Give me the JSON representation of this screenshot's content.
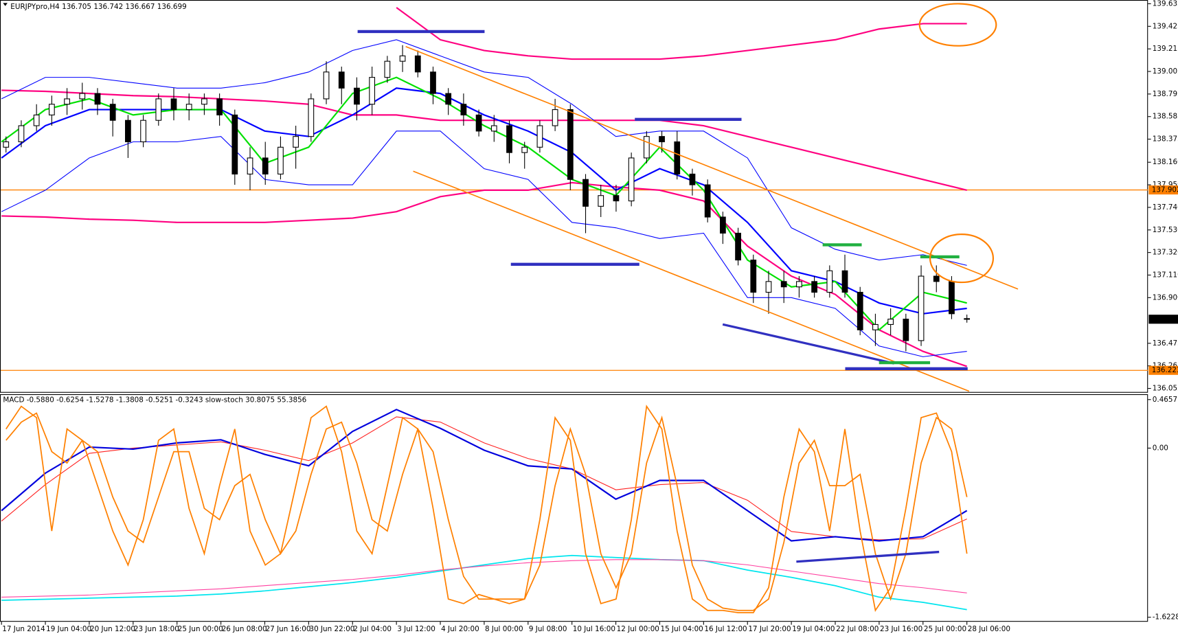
{
  "chart_data": [
    {
      "type": "candlestick",
      "title": "EURJPYpro,H4",
      "categories": [
        "17 Jun 2014",
        "19 Jun 04:00",
        "20 Jun 12:00",
        "23 Jun 18:00",
        "25 Jun 00:00",
        "26 Jun 08:00",
        "27 Jun 16:00",
        "30 Jun 22:00",
        "2 Jul 04:00",
        "3 Jul 12:00",
        "4 Jul 20:00",
        "8 Jul 00:00",
        "9 Jul 08:00",
        "10 Jul 16:00",
        "12 Jul 00:00",
        "15 Jul 04:00",
        "16 Jul 12:00",
        "17 Jul 20:00",
        "19 Jul 04:00",
        "22 Jul 08:00",
        "23 Jul 16:00",
        "25 Jul 00:00",
        "28 Jul 06:00"
      ],
      "ylim": [
        136.022,
        139.67
      ],
      "yticks": [
        139.635,
        139.425,
        139.215,
        139.005,
        138.795,
        138.585,
        138.375,
        {
          "value": 138.16,
          "label": "138.160"
        },
        {
          "value": 137.95,
          "label": "137.950"
        },
        {
          "value": 137.74,
          "label": "137.740"
        },
        {
          "value": 137.53,
          "label": "137.530"
        },
        {
          "value": 137.32,
          "label": "137.320"
        },
        {
          "value": 137.11,
          "label": "137.110"
        },
        {
          "value": 136.9,
          "label": "136.900"
        },
        136.475,
        136.265,
        136.055
      ],
      "price_lines": [
        {
          "value": 137.902,
          "color": "#ff8000"
        },
        {
          "value": 136.223,
          "color": "#ff8000"
        }
      ],
      "bid": 136.699,
      "ohlc": [
        [
          138.3,
          138.4,
          138.25,
          138.35
        ],
        [
          138.35,
          138.55,
          138.3,
          138.5
        ],
        [
          138.5,
          138.7,
          138.45,
          138.6
        ],
        [
          138.6,
          138.78,
          138.5,
          138.7
        ],
        [
          138.7,
          138.85,
          138.6,
          138.75
        ],
        [
          138.75,
          138.9,
          138.65,
          138.8
        ],
        [
          138.8,
          138.85,
          138.6,
          138.7
        ],
        [
          138.7,
          138.75,
          138.4,
          138.55
        ],
        [
          138.55,
          138.6,
          138.2,
          138.35
        ],
        [
          138.35,
          138.6,
          138.3,
          138.55
        ],
        [
          138.55,
          138.8,
          138.5,
          138.75
        ],
        [
          138.75,
          138.85,
          138.55,
          138.65
        ],
        [
          138.65,
          138.8,
          138.55,
          138.7
        ],
        [
          138.7,
          138.8,
          138.6,
          138.75
        ],
        [
          138.75,
          138.8,
          138.5,
          138.6
        ],
        [
          138.6,
          138.65,
          137.95,
          138.05
        ],
        [
          138.05,
          138.3,
          137.9,
          138.2
        ],
        [
          138.2,
          138.35,
          137.95,
          138.05
        ],
        [
          138.05,
          138.4,
          138.0,
          138.3
        ],
        [
          138.3,
          138.5,
          138.1,
          138.4
        ],
        [
          138.4,
          138.8,
          138.35,
          138.75
        ],
        [
          138.75,
          139.1,
          138.7,
          139.0
        ],
        [
          139.0,
          139.05,
          138.7,
          138.85
        ],
        [
          138.85,
          138.95,
          138.55,
          138.7
        ],
        [
          138.7,
          139.05,
          138.6,
          138.95
        ],
        [
          138.95,
          139.15,
          138.9,
          139.1
        ],
        [
          139.1,
          139.25,
          139.0,
          139.15
        ],
        [
          139.15,
          139.2,
          138.95,
          139.0
        ],
        [
          139.0,
          139.05,
          138.7,
          138.8
        ],
        [
          138.8,
          138.85,
          138.6,
          138.7
        ],
        [
          138.7,
          138.8,
          138.5,
          138.6
        ],
        [
          138.6,
          138.65,
          138.4,
          138.45
        ],
        [
          138.45,
          138.6,
          138.35,
          138.5
        ],
        [
          138.5,
          138.55,
          138.15,
          138.25
        ],
        [
          138.25,
          138.35,
          138.1,
          138.3
        ],
        [
          138.3,
          138.55,
          138.25,
          138.5
        ],
        [
          138.5,
          138.75,
          138.45,
          138.65
        ],
        [
          138.65,
          138.7,
          137.9,
          138.0
        ],
        [
          138.0,
          138.05,
          137.5,
          137.75
        ],
        [
          137.75,
          137.95,
          137.65,
          137.85
        ],
        [
          137.85,
          137.95,
          137.7,
          137.8
        ],
        [
          137.8,
          138.25,
          137.75,
          138.2
        ],
        [
          138.2,
          138.45,
          138.15,
          138.4
        ],
        [
          138.4,
          138.45,
          138.25,
          138.35
        ],
        [
          138.35,
          138.45,
          138.0,
          138.05
        ],
        [
          138.05,
          138.1,
          137.85,
          137.95
        ],
        [
          137.95,
          138.0,
          137.6,
          137.65
        ],
        [
          137.65,
          137.7,
          137.4,
          137.5
        ],
        [
          137.5,
          137.55,
          137.2,
          137.25
        ],
        [
          137.25,
          137.3,
          136.85,
          136.95
        ],
        [
          136.95,
          137.15,
          136.75,
          137.05
        ],
        [
          137.05,
          137.15,
          136.85,
          137.0
        ],
        [
          137.0,
          137.1,
          136.9,
          137.05
        ],
        [
          137.05,
          137.1,
          136.9,
          136.95
        ],
        [
          136.95,
          137.2,
          136.9,
          137.15
        ],
        [
          137.15,
          137.3,
          136.9,
          136.95
        ],
        [
          136.95,
          137.0,
          136.55,
          136.6
        ],
        [
          136.6,
          136.75,
          136.45,
          136.65
        ],
        [
          136.65,
          136.8,
          136.55,
          136.7
        ],
        [
          136.7,
          136.75,
          136.4,
          136.5
        ],
        [
          136.5,
          137.2,
          136.45,
          137.1
        ],
        [
          137.1,
          137.2,
          136.95,
          137.05
        ],
        [
          137.05,
          137.1,
          136.7,
          136.75
        ],
        [
          136.705,
          136.742,
          136.667,
          136.699
        ]
      ],
      "overlays": [
        {
          "color": "#ff0080",
          "width": 2,
          "values": [
            null,
            null,
            null,
            null,
            null,
            null,
            null,
            null,
            null,
            139.6,
            139.3,
            139.2,
            139.15,
            139.12,
            139.12,
            139.12,
            139.15,
            139.2,
            139.25,
            139.3,
            139.4,
            139.45,
            139.45
          ]
        },
        {
          "color": "#ff0080",
          "width": 2,
          "values": [
            138.83,
            138.82,
            138.8,
            138.78,
            138.77,
            138.75,
            138.73,
            138.7,
            138.6,
            138.6,
            138.55,
            138.55,
            138.55,
            138.55,
            138.55,
            138.55,
            138.5,
            138.4,
            138.3,
            138.2,
            138.1,
            138.0,
            137.9
          ]
        },
        {
          "color": "#ff0080",
          "width": 2,
          "values": [
            137.66,
            137.65,
            137.63,
            137.62,
            137.6,
            137.6,
            137.6,
            137.62,
            137.64,
            137.7,
            137.84,
            137.9,
            137.9,
            137.97,
            137.93,
            137.9,
            137.8,
            137.38,
            137.1,
            136.93,
            136.6,
            136.4,
            136.26
          ]
        },
        {
          "color": "#0000ff",
          "width": 1,
          "values": [
            138.75,
            138.95,
            138.95,
            138.9,
            138.85,
            138.85,
            138.9,
            139.0,
            139.2,
            139.3,
            139.15,
            139.0,
            138.95,
            138.7,
            138.4,
            138.45,
            138.45,
            138.2,
            137.55,
            137.35,
            137.25,
            137.3,
            137.2
          ]
        },
        {
          "color": "#0000ff",
          "width": 1,
          "values": [
            137.7,
            137.9,
            138.2,
            138.35,
            138.35,
            138.4,
            138.0,
            137.95,
            137.95,
            138.45,
            138.45,
            138.1,
            138.0,
            137.6,
            137.55,
            137.45,
            137.5,
            136.9,
            136.9,
            136.8,
            136.45,
            136.35,
            136.4
          ]
        },
        {
          "color": "#0000ff",
          "width": 2,
          "values": [
            138.2,
            138.5,
            138.65,
            138.65,
            138.65,
            138.65,
            138.45,
            138.4,
            138.6,
            138.85,
            138.8,
            138.6,
            138.45,
            138.25,
            137.9,
            138.1,
            137.95,
            137.6,
            137.15,
            137.05,
            136.85,
            136.75,
            136.8
          ]
        },
        {
          "color": "#00e000",
          "width": 2,
          "values": [
            138.35,
            138.65,
            138.75,
            138.6,
            138.65,
            138.65,
            138.15,
            138.3,
            138.8,
            138.95,
            138.75,
            138.5,
            138.3,
            138.0,
            137.85,
            138.3,
            137.9,
            137.25,
            137.0,
            137.05,
            136.6,
            136.95,
            136.85
          ]
        }
      ]
    },
    {
      "type": "line",
      "title": "MACD -0.5880 -0.6254 -1.5278 -1.3808 -0.5251 -0.3243 slow-stoch 30.8075 55.3856",
      "ylim": [
        -1.666,
        0.51
      ],
      "yticks": [
        0.4657,
        {
          "value": 0,
          "label": "0.00"
        },
        -1.6228
      ],
      "y2lim": [
        0,
        100
      ],
      "series": [
        {
          "color": "#00e5ee",
          "width": 1.6,
          "values": [
            -1.46,
            -1.45,
            -1.44,
            -1.43,
            -1.42,
            -1.4,
            -1.37,
            -1.33,
            -1.29,
            -1.24,
            -1.18,
            -1.12,
            -1.06,
            -1.03,
            -1.05,
            -1.07,
            -1.08,
            -1.17,
            -1.24,
            -1.32,
            -1.43,
            -1.48,
            -1.55
          ]
        },
        {
          "color": "#ff3fa0",
          "width": 1,
          "values": [
            -1.43,
            -1.42,
            -1.41,
            -1.39,
            -1.37,
            -1.35,
            -1.32,
            -1.29,
            -1.26,
            -1.22,
            -1.17,
            -1.13,
            -1.1,
            -1.08,
            -1.07,
            -1.07,
            -1.08,
            -1.12,
            -1.18,
            -1.24,
            -1.3,
            -1.34,
            -1.39
          ]
        },
        {
          "color": "#ff2020",
          "width": 1,
          "values": [
            -0.7,
            -0.35,
            -0.05,
            0.0,
            0.03,
            0.06,
            -0.02,
            -0.12,
            0.05,
            0.3,
            0.25,
            0.05,
            -0.1,
            -0.2,
            -0.4,
            -0.35,
            -0.33,
            -0.5,
            -0.8,
            -0.85,
            -0.88,
            -0.87,
            -0.68
          ]
        },
        {
          "color": "#0000dd",
          "width": 2,
          "values": [
            -0.6,
            -0.24,
            0.01,
            -0.01,
            0.05,
            0.08,
            -0.06,
            -0.17,
            0.16,
            0.37,
            0.19,
            -0.02,
            -0.17,
            -0.2,
            -0.49,
            -0.31,
            -0.31,
            -0.6,
            -0.89,
            -0.85,
            -0.89,
            -0.85,
            -0.6
          ]
        },
        {
          "color": "#ff8000",
          "width": 1.6,
          "axis": "y2",
          "values": [
            80,
            88,
            92,
            75,
            70,
            80,
            75,
            55,
            40,
            35,
            55,
            75,
            75,
            50,
            45,
            60,
            65,
            45,
            30,
            40,
            65,
            85,
            88,
            70,
            45,
            40,
            65,
            85,
            75,
            45,
            20,
            10,
            10,
            10,
            10,
            25,
            60,
            85,
            65,
            30,
            15,
            30,
            70,
            90,
            60,
            25,
            10,
            6,
            5,
            5,
            10,
            35,
            70,
            80,
            60,
            60,
            65,
            30,
            10,
            30,
            70,
            90,
            85,
            55
          ]
        },
        {
          "color": "#ff8000",
          "width": 1.6,
          "axis": "y2",
          "values": [
            85,
            95,
            90,
            40,
            85,
            80,
            60,
            40,
            25,
            45,
            80,
            85,
            50,
            30,
            60,
            85,
            40,
            25,
            30,
            60,
            90,
            95,
            75,
            40,
            30,
            60,
            90,
            85,
            50,
            10,
            8,
            12,
            10,
            8,
            10,
            45,
            90,
            80,
            30,
            8,
            10,
            45,
            95,
            85,
            40,
            10,
            5,
            5,
            4,
            4,
            15,
            55,
            85,
            75,
            40,
            85,
            40,
            5,
            15,
            50,
            90,
            92,
            75,
            30
          ]
        }
      ]
    }
  ]
}
